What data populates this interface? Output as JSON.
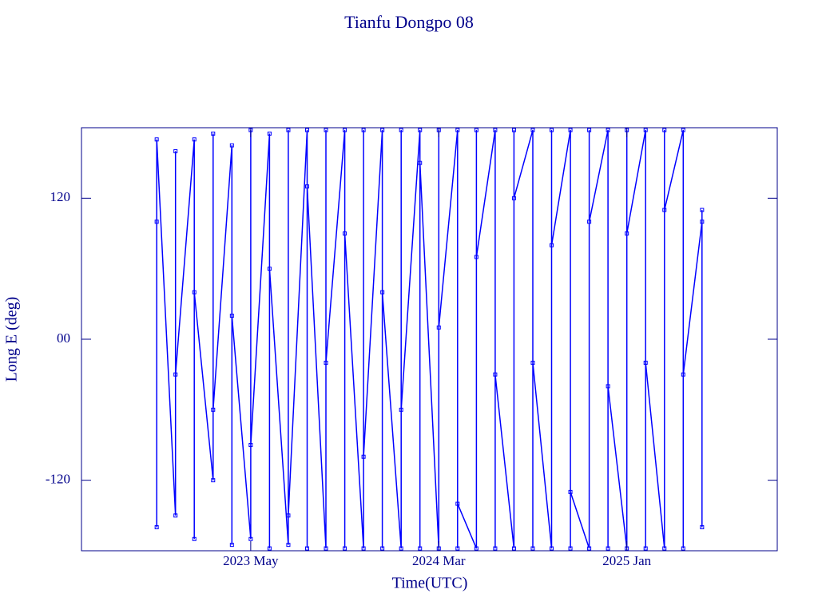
{
  "chart_data": {
    "type": "line",
    "title": "Tianfu Dongpo 08",
    "xlabel": "Time(UTC)",
    "ylabel": "Long E (deg)",
    "color": "#0000ff",
    "x": [
      "2022-12",
      "2022-12",
      "2022-12",
      "2023-01",
      "2023-01",
      "2023-01",
      "2023-02",
      "2023-02",
      "2023-02",
      "2023-03",
      "2023-03",
      "2023-03",
      "2023-04",
      "2023-04",
      "2023-04",
      "2023-05",
      "2023-05",
      "2023-05",
      "2023-06",
      "2023-06",
      "2023-06",
      "2023-07",
      "2023-07",
      "2023-07",
      "2023-08",
      "2023-08",
      "2023-08",
      "2023-09",
      "2023-09",
      "2023-09",
      "2023-10",
      "2023-10",
      "2023-10",
      "2023-11",
      "2023-11",
      "2023-11",
      "2023-12",
      "2023-12",
      "2023-12",
      "2024-01",
      "2024-01",
      "2024-01",
      "2024-02",
      "2024-02",
      "2024-02",
      "2024-03",
      "2024-03",
      "2024-03",
      "2024-04",
      "2024-04",
      "2024-04",
      "2024-05",
      "2024-05",
      "2024-05",
      "2024-06",
      "2024-06",
      "2024-06",
      "2024-07",
      "2024-07",
      "2024-07",
      "2024-08",
      "2024-08",
      "2024-08",
      "2024-09",
      "2024-09",
      "2024-09",
      "2024-10",
      "2024-10",
      "2024-10",
      "2024-11",
      "2024-11",
      "2024-11",
      "2024-12",
      "2024-12",
      "2024-12",
      "2025-01",
      "2025-01",
      "2025-01",
      "2025-02",
      "2025-02",
      "2025-02",
      "2025-03",
      "2025-03",
      "2025-03",
      "2025-04",
      "2025-04",
      "2025-04",
      "2025-05",
      "2025-05",
      "2025-05"
    ],
    "values": [
      100,
      -160,
      170,
      -150,
      160,
      -30,
      170,
      -170,
      40,
      -120,
      175,
      -60,
      165,
      -175,
      20,
      -170,
      178,
      -90,
      175,
      -178,
      60,
      -175,
      178,
      -150,
      178,
      -178,
      130,
      -178,
      178,
      -20,
      178,
      -178,
      90,
      -178,
      178,
      -100,
      178,
      -178,
      40,
      -178,
      178,
      -60,
      178,
      -178,
      150,
      -178,
      178,
      10,
      178,
      -178,
      -140,
      -178,
      178,
      70,
      178,
      -178,
      -30,
      -178,
      178,
      120,
      178,
      -178,
      -20,
      -178,
      178,
      80,
      178,
      -178,
      -130,
      -178,
      178,
      100,
      178,
      -178,
      -40,
      -178,
      178,
      90,
      178,
      -178,
      -20,
      -178,
      178,
      110,
      178,
      -178,
      -30,
      100,
      -160,
      110
    ],
    "xlim": [
      "2022-08",
      "2025-09"
    ],
    "xticks": [
      {
        "value": "2023-05",
        "label": "2023 May"
      },
      {
        "value": "2024-03",
        "label": "2024 Mar"
      },
      {
        "value": "2025-01",
        "label": "2025 Jan"
      }
    ],
    "ylim": [
      -180,
      180
    ],
    "yticks": [
      -120,
      {
        "value": 0,
        "label": "00"
      },
      120
    ]
  }
}
